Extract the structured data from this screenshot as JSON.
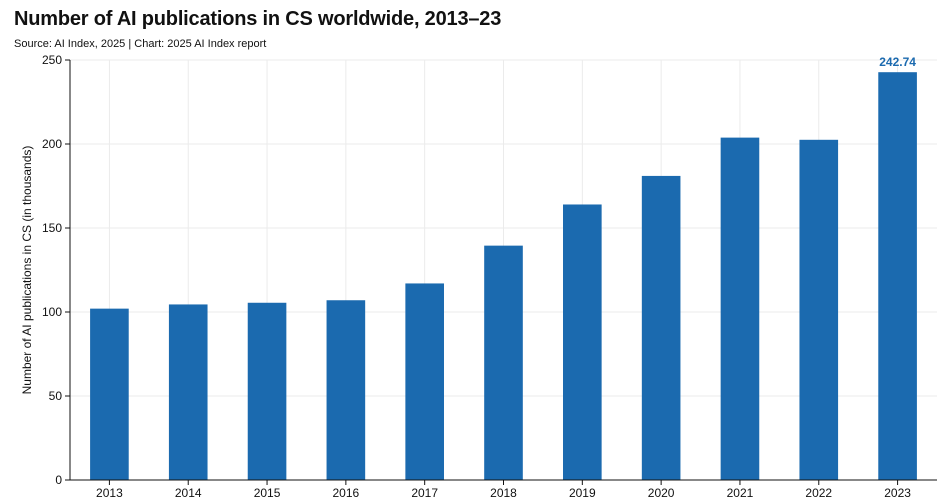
{
  "header": {
    "title": "Number of AI publications in CS worldwide, 2013–23",
    "subtitle": "Source: AI Index, 2025 | Chart: 2025 AI Index report"
  },
  "colors": {
    "bar": "#1b6aaf",
    "label": "#1b6aaf",
    "grid": "#ebebeb",
    "axis": "#111111"
  },
  "chart_data": {
    "type": "bar",
    "title": "Number of AI publications in CS worldwide, 2013–23",
    "xlabel": "",
    "ylabel": "Number of AI publications in CS (in thousands)",
    "ylim": [
      0,
      250
    ],
    "yticks": [
      0,
      50,
      100,
      150,
      200,
      250
    ],
    "grid": true,
    "categories": [
      "2013",
      "2014",
      "2015",
      "2016",
      "2017",
      "2018",
      "2019",
      "2020",
      "2021",
      "2022",
      "2023"
    ],
    "values": [
      102,
      104.5,
      105.5,
      107,
      117,
      139.5,
      164,
      181,
      203.8,
      202.5,
      242.74
    ],
    "annotations": [
      {
        "category": "2023",
        "text": "242.74"
      }
    ]
  }
}
